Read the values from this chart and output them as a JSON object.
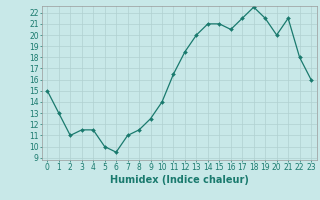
{
  "x": [
    0,
    1,
    2,
    3,
    4,
    5,
    6,
    7,
    8,
    9,
    10,
    11,
    12,
    13,
    14,
    15,
    16,
    17,
    18,
    19,
    20,
    21,
    22,
    23
  ],
  "y": [
    15,
    13,
    11,
    11.5,
    11.5,
    10,
    9.5,
    11,
    11.5,
    12.5,
    14,
    16.5,
    18.5,
    20,
    21,
    21,
    20.5,
    21.5,
    22.5,
    21.5,
    20,
    21.5,
    18,
    16
  ],
  "line_color": "#1a7a6e",
  "marker_color": "#1a7a6e",
  "bg_color": "#c8e8e8",
  "grid_color": "#b0d0d0",
  "xlabel": "Humidex (Indice chaleur)",
  "xlim": [
    -0.5,
    23.5
  ],
  "ylim": [
    8.8,
    22.6
  ],
  "yticks": [
    9,
    10,
    11,
    12,
    13,
    14,
    15,
    16,
    17,
    18,
    19,
    20,
    21,
    22
  ],
  "xticks": [
    0,
    1,
    2,
    3,
    4,
    5,
    6,
    7,
    8,
    9,
    10,
    11,
    12,
    13,
    14,
    15,
    16,
    17,
    18,
    19,
    20,
    21,
    22,
    23
  ],
  "tick_fontsize": 5.5,
  "xlabel_fontsize": 7,
  "linewidth": 0.9,
  "markersize": 2.0
}
